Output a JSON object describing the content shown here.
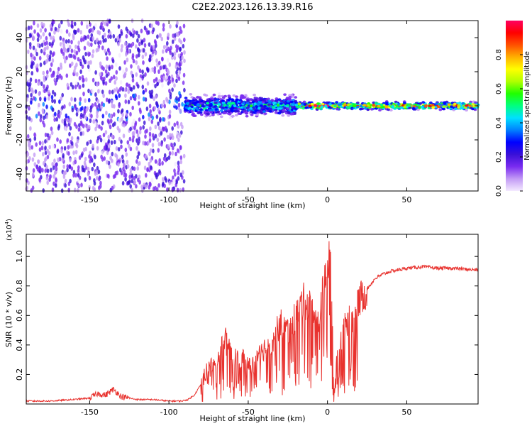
{
  "title": "C2E2.2023.126.13.39.R16",
  "colorbar": {
    "label": "Normalized spectral amplitude",
    "range": [
      0.0,
      1.0
    ],
    "ticks": [
      "0.0",
      "0.2",
      "0.4",
      "0.6",
      "0.8"
    ],
    "colors": [
      "#f4eaff",
      "#c39bf5",
      "#7a2cf0",
      "#3a10d8",
      "#0000ff",
      "#0080ff",
      "#00e0ff",
      "#00ff80",
      "#20ff00",
      "#b0ff00",
      "#ffff00",
      "#ffb000",
      "#ff5000",
      "#ff0000",
      "#ff0060"
    ]
  },
  "chart_data": [
    {
      "type": "heatmap",
      "name": "spectrogram",
      "title": "C2E2.2023.126.13.39.R16",
      "xlabel": "Height of straight line (km)",
      "ylabel": "Frequency (Hz)",
      "xlim": [
        -190,
        95
      ],
      "ylim": [
        -50,
        50
      ],
      "x_ticks": [
        "-150",
        "-100",
        "-50",
        "0",
        "50"
      ],
      "y_ticks": [
        "-40",
        "-20",
        "0",
        "20",
        "40"
      ],
      "regions": [
        {
          "x": [
            -190,
            -90
          ],
          "freq_center": 0,
          "freq_halfwidth": 50,
          "amplitude": 0.15,
          "description_level": "scattered noise"
        },
        {
          "x": [
            -90,
            -20
          ],
          "freq_center": 0,
          "freq_halfwidth": 8,
          "amplitude": 0.5
        },
        {
          "x": [
            -20,
            95
          ],
          "freq_center": 0,
          "freq_halfwidth": 3,
          "amplitude": 0.9
        }
      ]
    },
    {
      "type": "line",
      "name": "snr",
      "xlabel": "Height of straight line (km)",
      "ylabel": "SNR (10 * v/v)",
      "y_scale_note": "(x10",
      "y_scale_exp": "4",
      "xlim": [
        -190,
        95
      ],
      "ylim": [
        0,
        1.15
      ],
      "x_ticks": [
        "-150",
        "-100",
        "-50",
        "0",
        "50"
      ],
      "y_ticks": [
        "0.2",
        "0.4",
        "0.6",
        "0.8",
        "1.0"
      ],
      "color": "#e8322e",
      "series": [
        {
          "name": "SNR",
          "x": [
            -190,
            -175,
            -160,
            -150,
            -145,
            -140,
            -135,
            -130,
            -120,
            -110,
            -100,
            -92,
            -88,
            -84,
            -80,
            -75,
            -70,
            -65,
            -60,
            -55,
            -50,
            -45,
            -40,
            -35,
            -30,
            -25,
            -20,
            -15,
            -10,
            -6,
            -3,
            0,
            2,
            4,
            6,
            10,
            15,
            20,
            25,
            30,
            35,
            40,
            50,
            60,
            70,
            80,
            90,
            95
          ],
          "y": [
            0.02,
            0.02,
            0.03,
            0.04,
            0.07,
            0.06,
            0.1,
            0.05,
            0.03,
            0.03,
            0.02,
            0.02,
            0.03,
            0.06,
            0.13,
            0.25,
            0.28,
            0.45,
            0.3,
            0.32,
            0.25,
            0.28,
            0.38,
            0.4,
            0.55,
            0.5,
            0.6,
            0.7,
            0.65,
            0.55,
            0.75,
            0.9,
            1.12,
            0.03,
            0.35,
            0.5,
            0.58,
            0.7,
            0.78,
            0.85,
            0.88,
            0.9,
            0.92,
            0.93,
            0.92,
            0.92,
            0.91,
            0.91
          ]
        }
      ]
    }
  ]
}
